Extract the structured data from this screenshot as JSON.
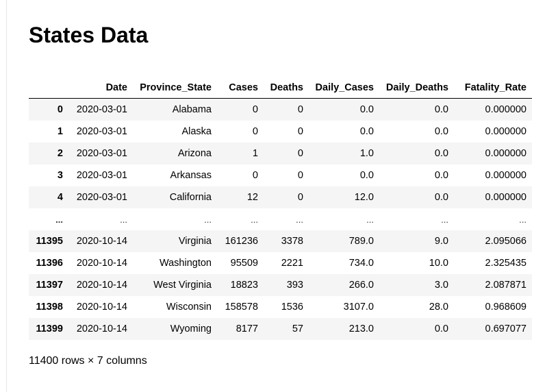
{
  "title": "States Data",
  "table": {
    "columns": [
      "Date",
      "Province_State",
      "Cases",
      "Deaths",
      "Daily_Cases",
      "Daily_Deaths",
      "Fatality_Rate"
    ],
    "rows": [
      {
        "index": "0",
        "cells": [
          "2020-03-01",
          "Alabama",
          "0",
          "0",
          "0.0",
          "0.0",
          "0.000000"
        ]
      },
      {
        "index": "1",
        "cells": [
          "2020-03-01",
          "Alaska",
          "0",
          "0",
          "0.0",
          "0.0",
          "0.000000"
        ]
      },
      {
        "index": "2",
        "cells": [
          "2020-03-01",
          "Arizona",
          "1",
          "0",
          "1.0",
          "0.0",
          "0.000000"
        ]
      },
      {
        "index": "3",
        "cells": [
          "2020-03-01",
          "Arkansas",
          "0",
          "0",
          "0.0",
          "0.0",
          "0.000000"
        ]
      },
      {
        "index": "4",
        "cells": [
          "2020-03-01",
          "California",
          "12",
          "0",
          "12.0",
          "0.0",
          "0.000000"
        ]
      },
      {
        "index": "...",
        "cells": [
          "...",
          "...",
          "...",
          "...",
          "...",
          "...",
          "..."
        ]
      },
      {
        "index": "11395",
        "cells": [
          "2020-10-14",
          "Virginia",
          "161236",
          "3378",
          "789.0",
          "9.0",
          "2.095066"
        ]
      },
      {
        "index": "11396",
        "cells": [
          "2020-10-14",
          "Washington",
          "95509",
          "2221",
          "734.0",
          "10.0",
          "2.325435"
        ]
      },
      {
        "index": "11397",
        "cells": [
          "2020-10-14",
          "West Virginia",
          "18823",
          "393",
          "266.0",
          "3.0",
          "2.087871"
        ]
      },
      {
        "index": "11398",
        "cells": [
          "2020-10-14",
          "Wisconsin",
          "158578",
          "1536",
          "3107.0",
          "28.0",
          "0.968609"
        ]
      },
      {
        "index": "11399",
        "cells": [
          "2020-10-14",
          "Wyoming",
          "8177",
          "57",
          "213.0",
          "0.0",
          "0.697077"
        ]
      }
    ]
  },
  "shape_caption": "11400 rows × 7 columns"
}
